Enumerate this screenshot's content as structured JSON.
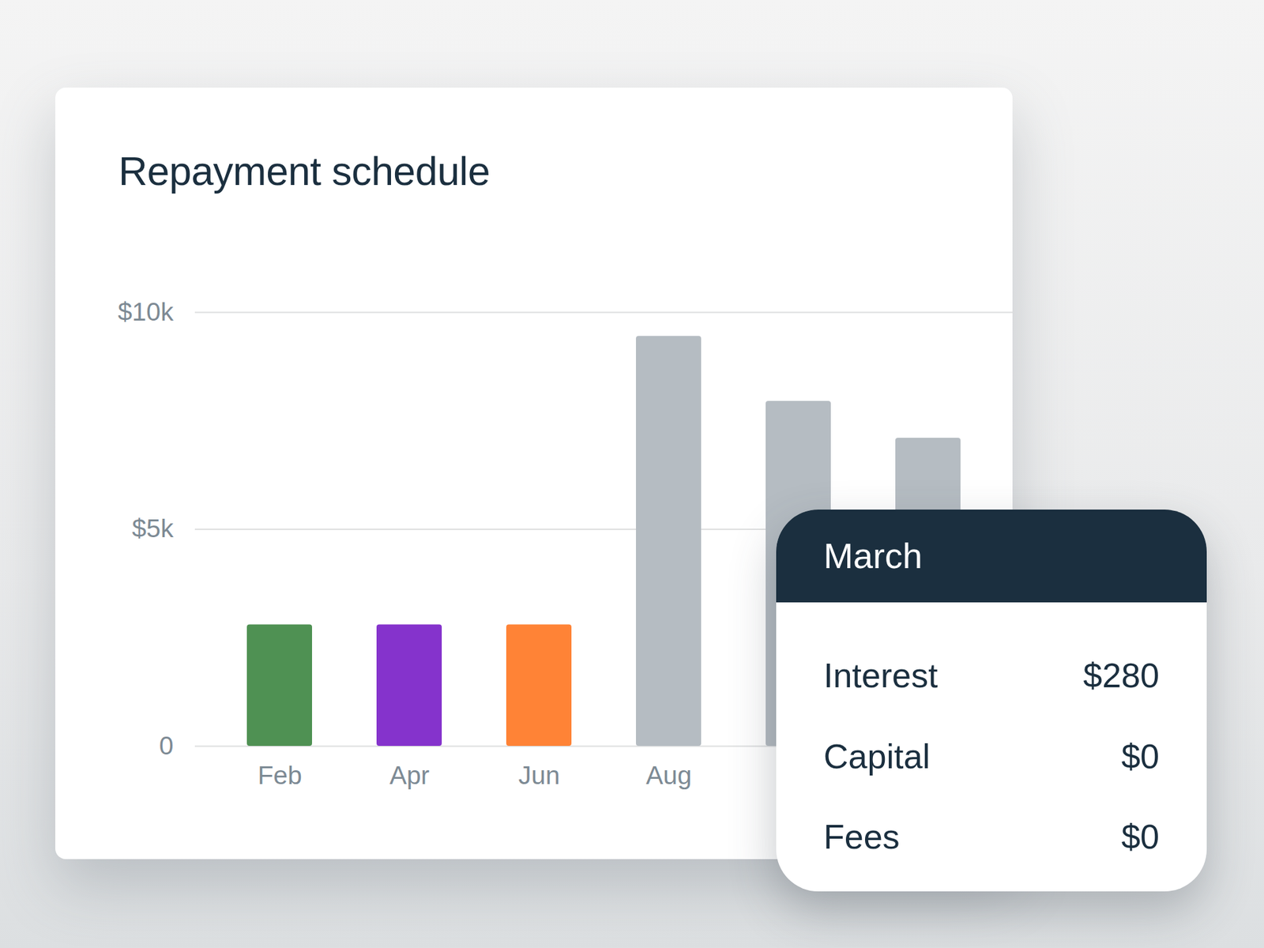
{
  "chart_data": {
    "type": "bar",
    "title": "Repayment schedule",
    "categories": [
      "Feb",
      "Apr",
      "Jun",
      "Aug",
      null,
      null
    ],
    "values": [
      2800,
      2800,
      2800,
      9450,
      7950,
      7100
    ],
    "colors": [
      "#4f9153",
      "#8533cc",
      "#ff8336",
      "#b5bcc2",
      "#b5bcc2",
      "#b5bcc2"
    ],
    "ylim": [
      0,
      10000
    ],
    "yticks": [
      0,
      {
        "value": 5000,
        "label": "$5k"
      },
      {
        "value": 10000,
        "label": "$10k"
      }
    ],
    "grid": true
  },
  "tooltip": {
    "title": "March",
    "rows": [
      {
        "label": "Interest",
        "value": "$280"
      },
      {
        "label": "Capital",
        "value": "$0"
      },
      {
        "label": "Fees",
        "value": "$0"
      }
    ]
  }
}
